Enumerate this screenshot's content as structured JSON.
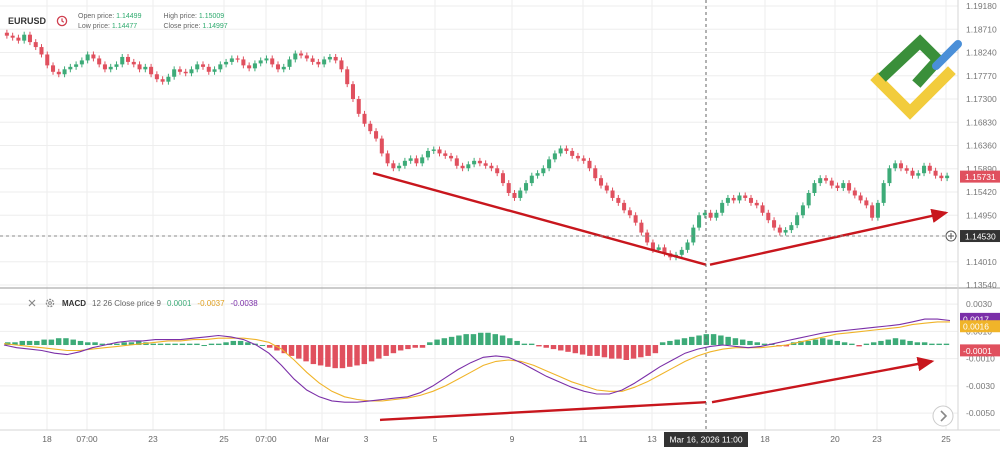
{
  "symbol": "EURUSD",
  "ohlc": {
    "open_label": "Open price:",
    "open_value": "1.14499",
    "high_label": "High price:",
    "high_value": "1.15009",
    "low_label": "Low price:",
    "low_value": "1.14477",
    "close_label": "Close price:",
    "close_value": "1.14997"
  },
  "macd_legend": {
    "name": "MACD",
    "params": "12 26 Close price 9",
    "v1": "0.0001",
    "v2": "-0.0037",
    "v3": "-0.0038"
  },
  "colors": {
    "up": "#3dab78",
    "down": "#e0505e",
    "macd_line": "#7b2fa8",
    "signal_line": "#f0b429",
    "arrow": "#c8161d",
    "grid": "#eeeeee"
  },
  "chart_data": [
    {
      "type": "candlestick",
      "title": "EURUSD",
      "price_axis_ticks": [
        "1.19180",
        "1.18710",
        "1.18240",
        "1.17770",
        "1.17300",
        "1.16830",
        "1.16360",
        "1.15890",
        "1.15420",
        "1.14950",
        "1.14530",
        "1.14010",
        "1.13540"
      ],
      "ylim": [
        1.1354,
        1.1918
      ],
      "time_axis_ticks": [
        "18",
        "07:00",
        "23",
        "25",
        "07:00",
        "Mar",
        "3",
        "5",
        "9",
        "11",
        "13",
        "18",
        "20",
        "23",
        "25"
      ],
      "crosshair_time": "Mar 16, 2026 11:00",
      "current_price": "1.15731",
      "crosshair_price": "1.14530",
      "close_path": [
        1.1858,
        1.1854,
        1.1848,
        1.186,
        1.1845,
        1.1835,
        1.182,
        1.1798,
        1.1785,
        1.178,
        1.179,
        1.1795,
        1.18,
        1.1808,
        1.182,
        1.1812,
        1.18,
        1.179,
        1.1795,
        1.18,
        1.1815,
        1.1805,
        1.18,
        1.179,
        1.1795,
        1.178,
        1.177,
        1.1765,
        1.1775,
        1.179,
        1.1785,
        1.1782,
        1.179,
        1.18,
        1.1795,
        1.1785,
        1.179,
        1.18,
        1.1805,
        1.1812,
        1.181,
        1.1798,
        1.1792,
        1.1802,
        1.1808,
        1.1812,
        1.18,
        1.179,
        1.1795,
        1.181,
        1.1822,
        1.1818,
        1.1812,
        1.1805,
        1.18,
        1.181,
        1.1815,
        1.1808,
        1.179,
        1.176,
        1.173,
        1.17,
        1.168,
        1.1665,
        1.165,
        1.162,
        1.16,
        1.159,
        1.1595,
        1.1605,
        1.161,
        1.16,
        1.1612,
        1.1625,
        1.1628,
        1.162,
        1.1615,
        1.161,
        1.1595,
        1.159,
        1.1598,
        1.1605,
        1.16,
        1.1595,
        1.159,
        1.158,
        1.156,
        1.154,
        1.153,
        1.1545,
        1.156,
        1.1575,
        1.158,
        1.159,
        1.1608,
        1.162,
        1.163,
        1.1625,
        1.1615,
        1.161,
        1.1605,
        1.159,
        1.157,
        1.1555,
        1.1545,
        1.153,
        1.152,
        1.1505,
        1.1495,
        1.148,
        1.146,
        1.144,
        1.1425,
        1.143,
        1.1418,
        1.141,
        1.1415,
        1.1425,
        1.144,
        1.147,
        1.1495,
        1.15,
        1.149,
        1.15,
        1.152,
        1.153,
        1.1525,
        1.1535,
        1.153,
        1.152,
        1.1515,
        1.15,
        1.1485,
        1.147,
        1.146,
        1.1465,
        1.1475,
        1.1495,
        1.1515,
        1.154,
        1.156,
        1.157,
        1.1565,
        1.1555,
        1.155,
        1.156,
        1.1545,
        1.1535,
        1.1525,
        1.1515,
        1.149,
        1.152,
        1.156,
        1.159,
        1.16,
        1.159,
        1.1585,
        1.1575,
        1.158,
        1.1595,
        1.1585,
        1.1575,
        1.157,
        1.1575
      ],
      "trend_arrows": [
        {
          "from": [
            "Mar 3",
            1.158
          ],
          "to": [
            "Mar 16 11:00",
            1.1395
          ]
        },
        {
          "from": [
            "Mar 16 11:00",
            1.1395
          ],
          "to": [
            "Mar 25",
            1.15
          ]
        }
      ]
    },
    {
      "type": "macd",
      "title": "MACD",
      "params": "12 26 Close price 9",
      "axis_ticks": [
        "0.0030",
        "0.0010",
        "-0.0010",
        "-0.0030",
        "-0.0050"
      ],
      "ylim": [
        -0.0058,
        0.0036
      ],
      "value_labels": [
        {
          "text": "0.0017",
          "value": 0.0017,
          "color": "#7b2fa8"
        },
        {
          "text": "0.0016",
          "value": 0.0016,
          "color": "#f0b429"
        },
        {
          "text": "-0.0001",
          "value": -0.0001,
          "color": "#e0505e"
        }
      ],
      "histogram": [
        0.0002,
        0.0002,
        0.0003,
        0.0003,
        0.0003,
        0.0004,
        0.0004,
        0.0005,
        0.0005,
        0.0004,
        0.0003,
        0.0002,
        0.0002,
        0.0001,
        0.0001,
        0.0001,
        0.0002,
        0.0002,
        0.0003,
        0.0002,
        0.0001,
        0.0001,
        0.0001,
        0.0001,
        0.0001,
        0.0001,
        0.0001,
        0.0,
        0.0001,
        0.0001,
        0.0002,
        0.0003,
        0.0003,
        0.0002,
        0.0001,
        0.0,
        -0.0002,
        -0.0004,
        -0.0006,
        -0.0008,
        -0.001,
        -0.0012,
        -0.0014,
        -0.0015,
        -0.0016,
        -0.0017,
        -0.0017,
        -0.0016,
        -0.0015,
        -0.0014,
        -0.0012,
        -0.001,
        -0.0008,
        -0.0006,
        -0.0004,
        -0.0003,
        -0.0002,
        -0.0002,
        0.0002,
        0.0004,
        0.0005,
        0.0006,
        0.0007,
        0.0008,
        0.0008,
        0.0009,
        0.0009,
        0.0008,
        0.0007,
        0.0005,
        0.0003,
        0.0001,
        0.0001,
        -0.0001,
        -0.0002,
        -0.0003,
        -0.0004,
        -0.0005,
        -0.0006,
        -0.0007,
        -0.0008,
        -0.0008,
        -0.0009,
        -0.001,
        -0.001,
        -0.0011,
        -0.001,
        -0.0009,
        -0.0008,
        -0.0006,
        0.0002,
        0.0003,
        0.0004,
        0.0005,
        0.0006,
        0.0007,
        0.0008,
        0.0008,
        0.0007,
        0.0006,
        0.0005,
        0.0004,
        0.0003,
        0.0002,
        0.0001,
        0.0001,
        -0.0001,
        -0.0001,
        0.0002,
        0.0003,
        0.0003,
        0.0004,
        0.0005,
        0.0004,
        0.0003,
        0.0002,
        0.0001,
        -0.0001,
        0.0001,
        0.0002,
        0.0003,
        0.0004,
        0.0005,
        0.0004,
        0.0003,
        0.0002,
        0.0002,
        0.0001,
        0.0001,
        0.0001
      ],
      "macd_line": [
        0.0,
        -0.0002,
        -0.0003,
        -0.0004,
        -0.0006,
        -0.0007,
        -0.0005,
        -0.0002,
        0.0,
        0.0002,
        0.0003,
        0.0003,
        0.0004,
        0.0004,
        0.0004,
        0.0005,
        0.0006,
        0.0007,
        0.0006,
        0.0004,
        0.0,
        -0.0006,
        -0.0015,
        -0.0025,
        -0.0033,
        -0.0038,
        -0.0041,
        -0.0042,
        -0.0042,
        -0.0041,
        -0.004,
        -0.0039,
        -0.0038,
        -0.0035,
        -0.003,
        -0.0024,
        -0.0018,
        -0.0013,
        -0.0009,
        -0.0008,
        -0.0009,
        -0.0013,
        -0.0018,
        -0.0023,
        -0.0027,
        -0.0031,
        -0.0034,
        -0.0036,
        -0.0036,
        -0.0033,
        -0.0028,
        -0.0022,
        -0.0016,
        -0.0011,
        -0.0006,
        -0.0003,
        -0.0001,
        0.0,
        -0.0001,
        -0.0002,
        -0.0001,
        0.0001,
        0.0003,
        0.0005,
        0.0007,
        0.0009,
        0.001,
        0.0011,
        0.0012,
        0.0013,
        0.0014,
        0.0015,
        0.0017,
        0.0019,
        0.0019,
        0.0018
      ],
      "signal_line": [
        0.0001,
        0.0,
        -0.0001,
        -0.0002,
        -0.0003,
        -0.0004,
        -0.0004,
        -0.0003,
        -0.0002,
        -0.0001,
        0.0,
        0.0001,
        0.0002,
        0.0003,
        0.0003,
        0.0004,
        0.0004,
        0.0005,
        0.0005,
        0.0005,
        0.0004,
        0.0002,
        -0.0003,
        -0.0011,
        -0.002,
        -0.0028,
        -0.0034,
        -0.0038,
        -0.004,
        -0.0041,
        -0.0041,
        -0.004,
        -0.0039,
        -0.0037,
        -0.0034,
        -0.003,
        -0.0025,
        -0.002,
        -0.0015,
        -0.0012,
        -0.0011,
        -0.0012,
        -0.0015,
        -0.0019,
        -0.0023,
        -0.0027,
        -0.003,
        -0.0033,
        -0.0034,
        -0.0034,
        -0.0031,
        -0.0027,
        -0.0022,
        -0.0017,
        -0.0012,
        -0.0008,
        -0.0005,
        -0.0003,
        -0.0002,
        -0.0002,
        -0.0002,
        -0.0001,
        0.0,
        0.0002,
        0.0004,
        0.0006,
        0.0008,
        0.0009,
        0.001,
        0.0011,
        0.0012,
        0.0013,
        0.0015,
        0.0016,
        0.0017,
        0.0017
      ],
      "trend_arrows": [
        {
          "from": [
            "Mar 3",
            -0.0055
          ],
          "to": [
            "Mar 16 11:00",
            -0.0042
          ]
        },
        {
          "from": [
            "Mar 16 11:00",
            -0.0042
          ],
          "to": [
            "Mar 25",
            -0.0012
          ]
        }
      ]
    }
  ]
}
